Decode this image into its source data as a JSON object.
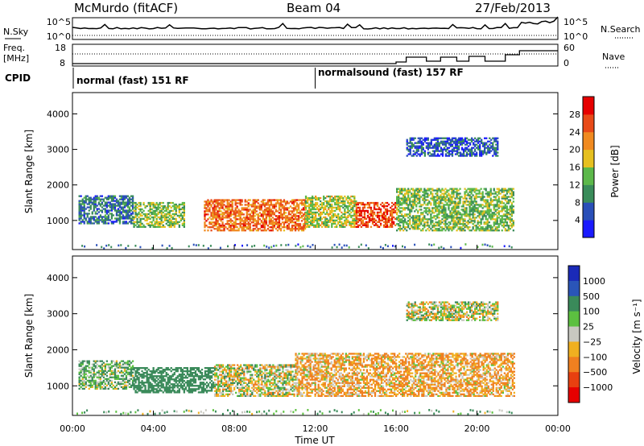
{
  "header": {
    "station": "McMurdo (fitACF)",
    "beam": "Beam 04",
    "date": "27/Feb/2013"
  },
  "top_panels": {
    "nsky_label": "N.Sky",
    "nsearch_label": "N.Search",
    "noise_ticks": [
      "10^5",
      "10^0"
    ],
    "freq_label_1": "Freq.",
    "freq_label_2": "[MHz]",
    "freq_ticks": [
      "18",
      "8"
    ],
    "nave_label": "Nave",
    "nave_ticks": [
      "60",
      "0"
    ],
    "cpid_label": "CPID",
    "modes": [
      {
        "text": "normal (fast) 151 RF",
        "start_hour": 0
      },
      {
        "text": "normalsound (fast) 157 RF",
        "start_hour": 12
      }
    ]
  },
  "axes": {
    "ylabel": "Slant Range [km]",
    "xlabel": "Time UT",
    "x_ticks": [
      "00:00",
      "04:00",
      "08:00",
      "12:00",
      "16:00",
      "20:00",
      "00:00"
    ],
    "y_ticks": [
      "1000",
      "2000",
      "3000",
      "4000"
    ]
  },
  "power_colorbar": {
    "label": "Power [dB]",
    "ticks": [
      "4",
      "8",
      "12",
      "16",
      "20",
      "24",
      "28"
    ],
    "colors": [
      "#1a1aff",
      "#2a4fb8",
      "#3a8c5a",
      "#5cb84a",
      "#e6c020",
      "#f08a20",
      "#e84a18",
      "#e60000"
    ]
  },
  "velocity_colorbar": {
    "label": "Velocity [m s⁻¹]",
    "ticks": [
      "1000",
      "500",
      "100",
      "25",
      "−25",
      "−100",
      "−500",
      "−1000"
    ],
    "colors": [
      "#1a2ab8",
      "#2a55b8",
      "#3a8a5a",
      "#5cc040",
      "#c8c8c0",
      "#f0b020",
      "#f08020",
      "#e84010",
      "#e60000"
    ]
  },
  "chart_data": {
    "type": "heatmap",
    "title": "McMurdo (fitACF)  Beam 04  27/Feb/2013",
    "xlabel": "Time UT",
    "ylabel": "Slant Range [km]",
    "x_range_hours": [
      0,
      24
    ],
    "y_range_km": [
      180,
      4600
    ],
    "grid": false,
    "panels": [
      {
        "name": "Power [dB]",
        "colorbar_range": [
          0,
          32
        ],
        "echo_regions": [
          {
            "t_start": 0.3,
            "t_end": 3.0,
            "range_low": 900,
            "range_high": 1700,
            "typical_value": 8
          },
          {
            "t_start": 3.0,
            "t_end": 5.5,
            "range_low": 800,
            "range_high": 1500,
            "typical_value": 14
          },
          {
            "t_start": 6.5,
            "t_end": 11.5,
            "range_low": 700,
            "range_high": 1600,
            "typical_value": 24
          },
          {
            "t_start": 11.5,
            "t_end": 14.0,
            "range_low": 800,
            "range_high": 1700,
            "typical_value": 16
          },
          {
            "t_start": 14.0,
            "t_end": 16.0,
            "range_low": 800,
            "range_high": 1500,
            "typical_value": 26
          },
          {
            "t_start": 16.0,
            "t_end": 21.8,
            "range_low": 700,
            "range_high": 1900,
            "typical_value": 14
          },
          {
            "t_start": 16.5,
            "t_end": 21.0,
            "range_low": 2800,
            "range_high": 3300,
            "typical_value": 6
          }
        ]
      },
      {
        "name": "Velocity [m s⁻¹]",
        "colorbar_range": [
          -1000,
          1000
        ],
        "echo_regions": [
          {
            "t_start": 0.3,
            "t_end": 3.0,
            "range_low": 900,
            "range_high": 1700,
            "typical_value": 100
          },
          {
            "t_start": 3.0,
            "t_end": 7.0,
            "range_low": 800,
            "range_high": 1500,
            "typical_value": 300
          },
          {
            "t_start": 7.0,
            "t_end": 11.0,
            "range_low": 700,
            "range_high": 1600,
            "typical_value": 0
          },
          {
            "t_start": 11.0,
            "t_end": 21.8,
            "range_low": 700,
            "range_high": 1900,
            "typical_value": -100
          },
          {
            "t_start": 16.5,
            "t_end": 21.0,
            "range_low": 2800,
            "range_high": 3300,
            "typical_value": 0
          }
        ]
      }
    ]
  }
}
